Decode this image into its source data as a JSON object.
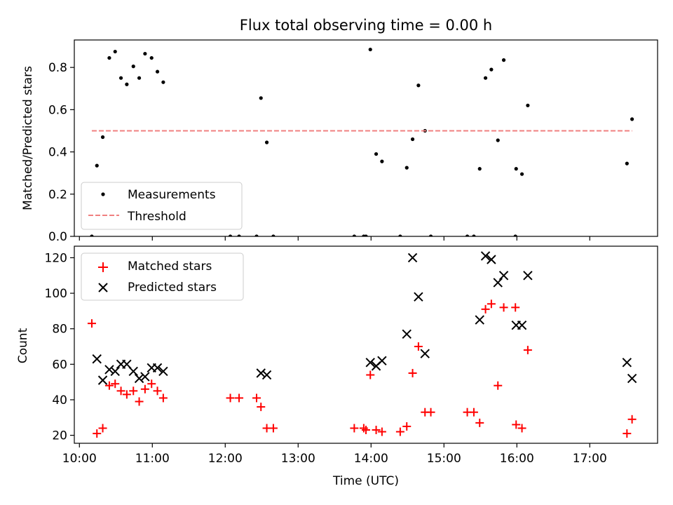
{
  "figure": {
    "background": "#ffffff"
  },
  "chart_data": [
    {
      "type": "scatter",
      "title": "Flux total observing time = 0.00 h",
      "xlabel": "",
      "ylabel": "Matched/Predicted stars",
      "xlim": [
        9.93,
        17.93
      ],
      "ylim": [
        0,
        0.93
      ],
      "x_ticks": [
        10,
        11,
        12,
        13,
        14,
        15,
        16,
        17
      ],
      "x_tick_labels_visible": false,
      "y_ticks": [
        0.0,
        0.2,
        0.4,
        0.6,
        0.8
      ],
      "y_tick_labels": [
        "0.0",
        "0.2",
        "0.4",
        "0.6",
        "0.8"
      ],
      "grid": false,
      "legend": {
        "placement": "lower-left"
      },
      "series": [
        {
          "name": "Measurements",
          "kind": "scatter",
          "marker": "dot",
          "color": "#000000",
          "points": [
            [
              10.17,
              0.0
            ],
            [
              10.24,
              0.335
            ],
            [
              10.32,
              0.47
            ],
            [
              10.41,
              0.845
            ],
            [
              10.49,
              0.875
            ],
            [
              10.57,
              0.75
            ],
            [
              10.65,
              0.72
            ],
            [
              10.74,
              0.805
            ],
            [
              10.82,
              0.75
            ],
            [
              10.9,
              0.865
            ],
            [
              10.99,
              0.845
            ],
            [
              11.07,
              0.78
            ],
            [
              11.15,
              0.73
            ],
            [
              12.07,
              0.0
            ],
            [
              12.19,
              0.0
            ],
            [
              12.43,
              0.0
            ],
            [
              12.49,
              0.655
            ],
            [
              12.57,
              0.445
            ],
            [
              12.66,
              0.0
            ],
            [
              13.77,
              0.0
            ],
            [
              13.9,
              0.0
            ],
            [
              13.93,
              0.0
            ],
            [
              13.99,
              0.885
            ],
            [
              14.07,
              0.39
            ],
            [
              14.15,
              0.355
            ],
            [
              14.4,
              0.0
            ],
            [
              14.49,
              0.325
            ],
            [
              14.57,
              0.46
            ],
            [
              14.65,
              0.715
            ],
            [
              14.74,
              0.5
            ],
            [
              14.82,
              0.0
            ],
            [
              15.32,
              0.0
            ],
            [
              15.41,
              0.0
            ],
            [
              15.49,
              0.32
            ],
            [
              15.57,
              0.75
            ],
            [
              15.65,
              0.79
            ],
            [
              15.74,
              0.455
            ],
            [
              15.82,
              0.835
            ],
            [
              15.98,
              0.0
            ],
            [
              15.99,
              0.32
            ],
            [
              16.07,
              0.295
            ],
            [
              16.15,
              0.62
            ],
            [
              17.51,
              0.345
            ],
            [
              17.58,
              0.555
            ]
          ]
        },
        {
          "name": "Threshold",
          "kind": "line",
          "style": "dashed",
          "color": "#f08080",
          "points": [
            [
              10.17,
              0.5
            ],
            [
              17.58,
              0.5
            ]
          ]
        }
      ]
    },
    {
      "type": "scatter",
      "title": "",
      "xlabel": "Time (UTC)",
      "ylabel": "Count",
      "xlim": [
        9.93,
        17.93
      ],
      "ylim": [
        15.5,
        126.5
      ],
      "x_ticks": [
        10,
        11,
        12,
        13,
        14,
        15,
        16,
        17
      ],
      "x_tick_labels": [
        "10:00",
        "11:00",
        "12:00",
        "13:00",
        "14:00",
        "15:00",
        "16:00",
        "17:00"
      ],
      "y_ticks": [
        20,
        40,
        60,
        80,
        100,
        120
      ],
      "y_tick_labels": [
        "20",
        "40",
        "60",
        "80",
        "100",
        "120"
      ],
      "grid": false,
      "legend": {
        "placement": "top-left"
      },
      "series": [
        {
          "name": "Matched stars",
          "kind": "scatter",
          "marker": "plus",
          "color": "#ff0000",
          "points": [
            [
              10.17,
              83
            ],
            [
              10.24,
              21
            ],
            [
              10.32,
              24
            ],
            [
              10.41,
              48
            ],
            [
              10.49,
              49
            ],
            [
              10.57,
              45
            ],
            [
              10.65,
              43
            ],
            [
              10.74,
              45
            ],
            [
              10.82,
              39
            ],
            [
              10.9,
              46
            ],
            [
              10.99,
              49
            ],
            [
              11.07,
              45
            ],
            [
              11.15,
              41
            ],
            [
              12.07,
              41
            ],
            [
              12.19,
              41
            ],
            [
              12.43,
              41
            ],
            [
              12.49,
              36
            ],
            [
              12.57,
              24
            ],
            [
              12.66,
              24
            ],
            [
              13.77,
              24
            ],
            [
              13.9,
              24
            ],
            [
              13.93,
              23
            ],
            [
              13.99,
              54
            ],
            [
              14.07,
              23
            ],
            [
              14.15,
              22
            ],
            [
              14.4,
              22
            ],
            [
              14.49,
              25
            ],
            [
              14.57,
              55
            ],
            [
              14.65,
              70
            ],
            [
              14.74,
              33
            ],
            [
              14.82,
              33
            ],
            [
              15.32,
              33
            ],
            [
              15.41,
              33
            ],
            [
              15.49,
              27
            ],
            [
              15.57,
              91
            ],
            [
              15.65,
              94
            ],
            [
              15.74,
              48
            ],
            [
              15.82,
              92
            ],
            [
              15.98,
              92
            ],
            [
              15.99,
              26
            ],
            [
              16.07,
              24
            ],
            [
              16.15,
              68
            ],
            [
              17.51,
              21
            ],
            [
              17.58,
              29
            ]
          ]
        },
        {
          "name": "Predicted stars",
          "kind": "scatter",
          "marker": "x",
          "color": "#000000",
          "points": [
            [
              10.24,
              63
            ],
            [
              10.32,
              51
            ],
            [
              10.41,
              57
            ],
            [
              10.49,
              56
            ],
            [
              10.57,
              60
            ],
            [
              10.65,
              60
            ],
            [
              10.74,
              56
            ],
            [
              10.82,
              52
            ],
            [
              10.9,
              53
            ],
            [
              10.99,
              58
            ],
            [
              11.07,
              58
            ],
            [
              11.15,
              56
            ],
            [
              12.49,
              55
            ],
            [
              12.57,
              54
            ],
            [
              13.99,
              61
            ],
            [
              14.07,
              59
            ],
            [
              14.15,
              62
            ],
            [
              14.49,
              77
            ],
            [
              14.57,
              120
            ],
            [
              14.65,
              98
            ],
            [
              14.74,
              66
            ],
            [
              15.49,
              85
            ],
            [
              15.57,
              121
            ],
            [
              15.65,
              119
            ],
            [
              15.74,
              106
            ],
            [
              15.82,
              110
            ],
            [
              15.99,
              82
            ],
            [
              16.07,
              82
            ],
            [
              16.15,
              110
            ],
            [
              17.51,
              61
            ],
            [
              17.58,
              52
            ]
          ]
        }
      ]
    }
  ]
}
